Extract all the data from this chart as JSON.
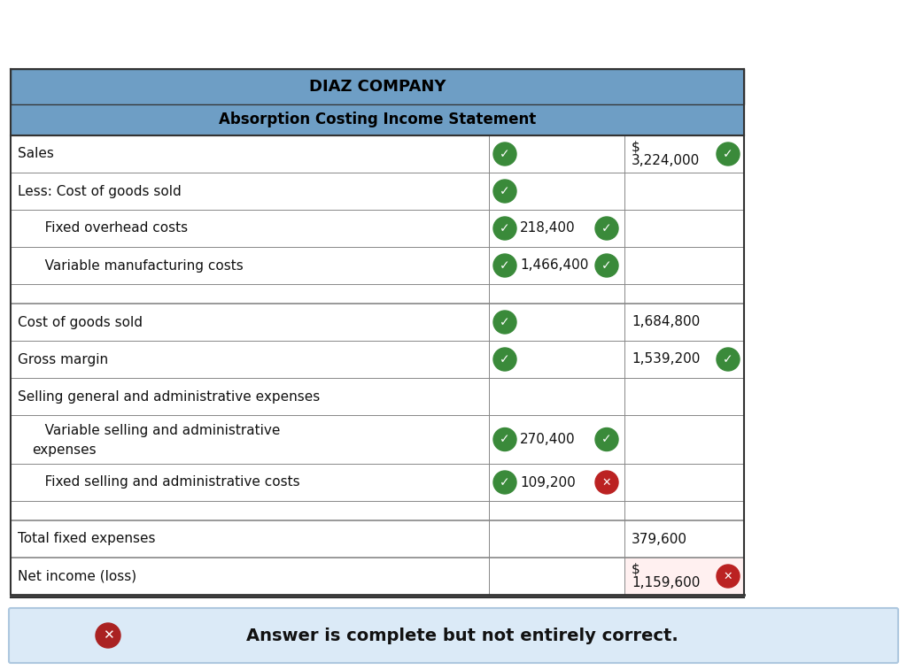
{
  "banner_text": "Answer is complete but not entirely correct.",
  "banner_bg": "#dbeaf7",
  "banner_border": "#aec8df",
  "title1": "DIAZ COMPANY",
  "title2": "Absorption Costing Income Statement",
  "header_bg": "#6e9ec5",
  "header_text_color": "#000000",
  "border_color": "#888888",
  "thick_border": "#333333",
  "rows": [
    {
      "label": "Sales",
      "indent": 0,
      "col1_icon": "green",
      "col1_val": "",
      "col1_icon_after_val": false,
      "col2_val": "$\n3,224,000",
      "col2_icon": "green",
      "net_income_bg": false
    },
    {
      "label": "Less: Cost of goods sold",
      "indent": 0,
      "col1_icon": "green",
      "col1_val": "",
      "col1_icon_after_val": false,
      "col2_val": "",
      "col2_icon": "",
      "net_income_bg": false
    },
    {
      "label": "   Fixed overhead costs",
      "indent": 1,
      "col1_icon": "green",
      "col1_val": "218,400",
      "col1_icon_after_val": true,
      "col2_val": "",
      "col2_icon": "",
      "net_income_bg": false
    },
    {
      "label": "   Variable manufacturing costs",
      "indent": 1,
      "col1_icon": "green",
      "col1_val": "1,466,400",
      "col1_icon_after_val": true,
      "col2_val": "",
      "col2_icon": "",
      "net_income_bg": false
    },
    {
      "label": "",
      "indent": 0,
      "col1_icon": "",
      "col1_val": "",
      "col1_icon_after_val": false,
      "col2_val": "",
      "col2_icon": "",
      "net_income_bg": false
    },
    {
      "label": "Cost of goods sold",
      "indent": 0,
      "col1_icon": "green",
      "col1_val": "",
      "col1_icon_after_val": false,
      "col2_val": "1,684,800",
      "col2_icon": "",
      "net_income_bg": false
    },
    {
      "label": "Gross margin",
      "indent": 0,
      "col1_icon": "green",
      "col1_val": "",
      "col1_icon_after_val": false,
      "col2_val": "1,539,200",
      "col2_icon": "green",
      "net_income_bg": false
    },
    {
      "label": "Selling general and administrative expenses",
      "indent": 0,
      "col1_icon": "",
      "col1_val": "",
      "col1_icon_after_val": false,
      "col2_val": "",
      "col2_icon": "",
      "net_income_bg": false
    },
    {
      "label": "   Variable selling and administrative\nexpenses",
      "indent": 1,
      "col1_icon": "green",
      "col1_val": "270,400",
      "col1_icon_after_val": true,
      "col2_val": "",
      "col2_icon": "",
      "net_income_bg": false
    },
    {
      "label": "   Fixed selling and administrative costs",
      "indent": 1,
      "col1_icon": "green",
      "col1_val": "109,200",
      "col1_icon_after_val": false,
      "col2_val": "",
      "col2_icon": "red",
      "net_income_bg": false
    },
    {
      "label": "",
      "indent": 0,
      "col1_icon": "",
      "col1_val": "",
      "col1_icon_after_val": false,
      "col2_val": "",
      "col2_icon": "",
      "net_income_bg": false
    },
    {
      "label": "Total fixed expenses",
      "indent": 0,
      "col1_icon": "",
      "col1_val": "",
      "col1_icon_after_val": false,
      "col2_val": "379,600",
      "col2_icon": "",
      "net_income_bg": false
    },
    {
      "label": "Net income (loss)",
      "indent": 0,
      "col1_icon": "",
      "col1_val": "",
      "col1_icon_after_val": false,
      "col2_val": "$\n1,159,600",
      "col2_icon": "red",
      "net_income_bg": true
    }
  ],
  "figsize": [
    10.24,
    7.57
  ],
  "dpi": 100
}
